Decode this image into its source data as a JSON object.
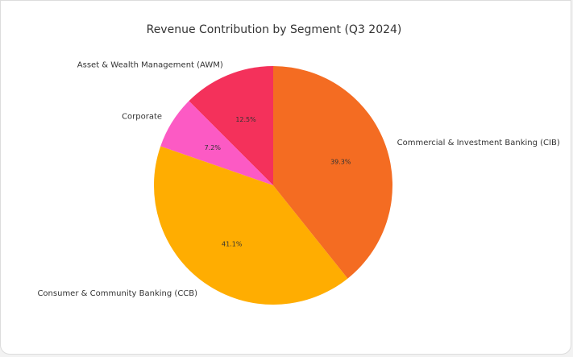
{
  "chart_data": {
    "type": "pie",
    "title": "Revenue Contribution by Segment (Q3 2024)",
    "start_angle_deg": 90,
    "direction": "counterclockwise",
    "slices": [
      {
        "label": "Asset & Wealth Management (AWM)",
        "value": 12.5,
        "pct_label": "12.5%",
        "color": "#f4315b"
      },
      {
        "label": "Corporate",
        "value": 7.2,
        "pct_label": "7.2%",
        "color": "#fc5ac4"
      },
      {
        "label": "Consumer & Community Banking (CCB)",
        "value": 41.1,
        "pct_label": "41.1%",
        "color": "#ffad01"
      },
      {
        "label": "Commercial & Investment Banking (CIB)",
        "value": 39.3,
        "pct_label": "39.3%",
        "color": "#f46c22"
      }
    ]
  }
}
